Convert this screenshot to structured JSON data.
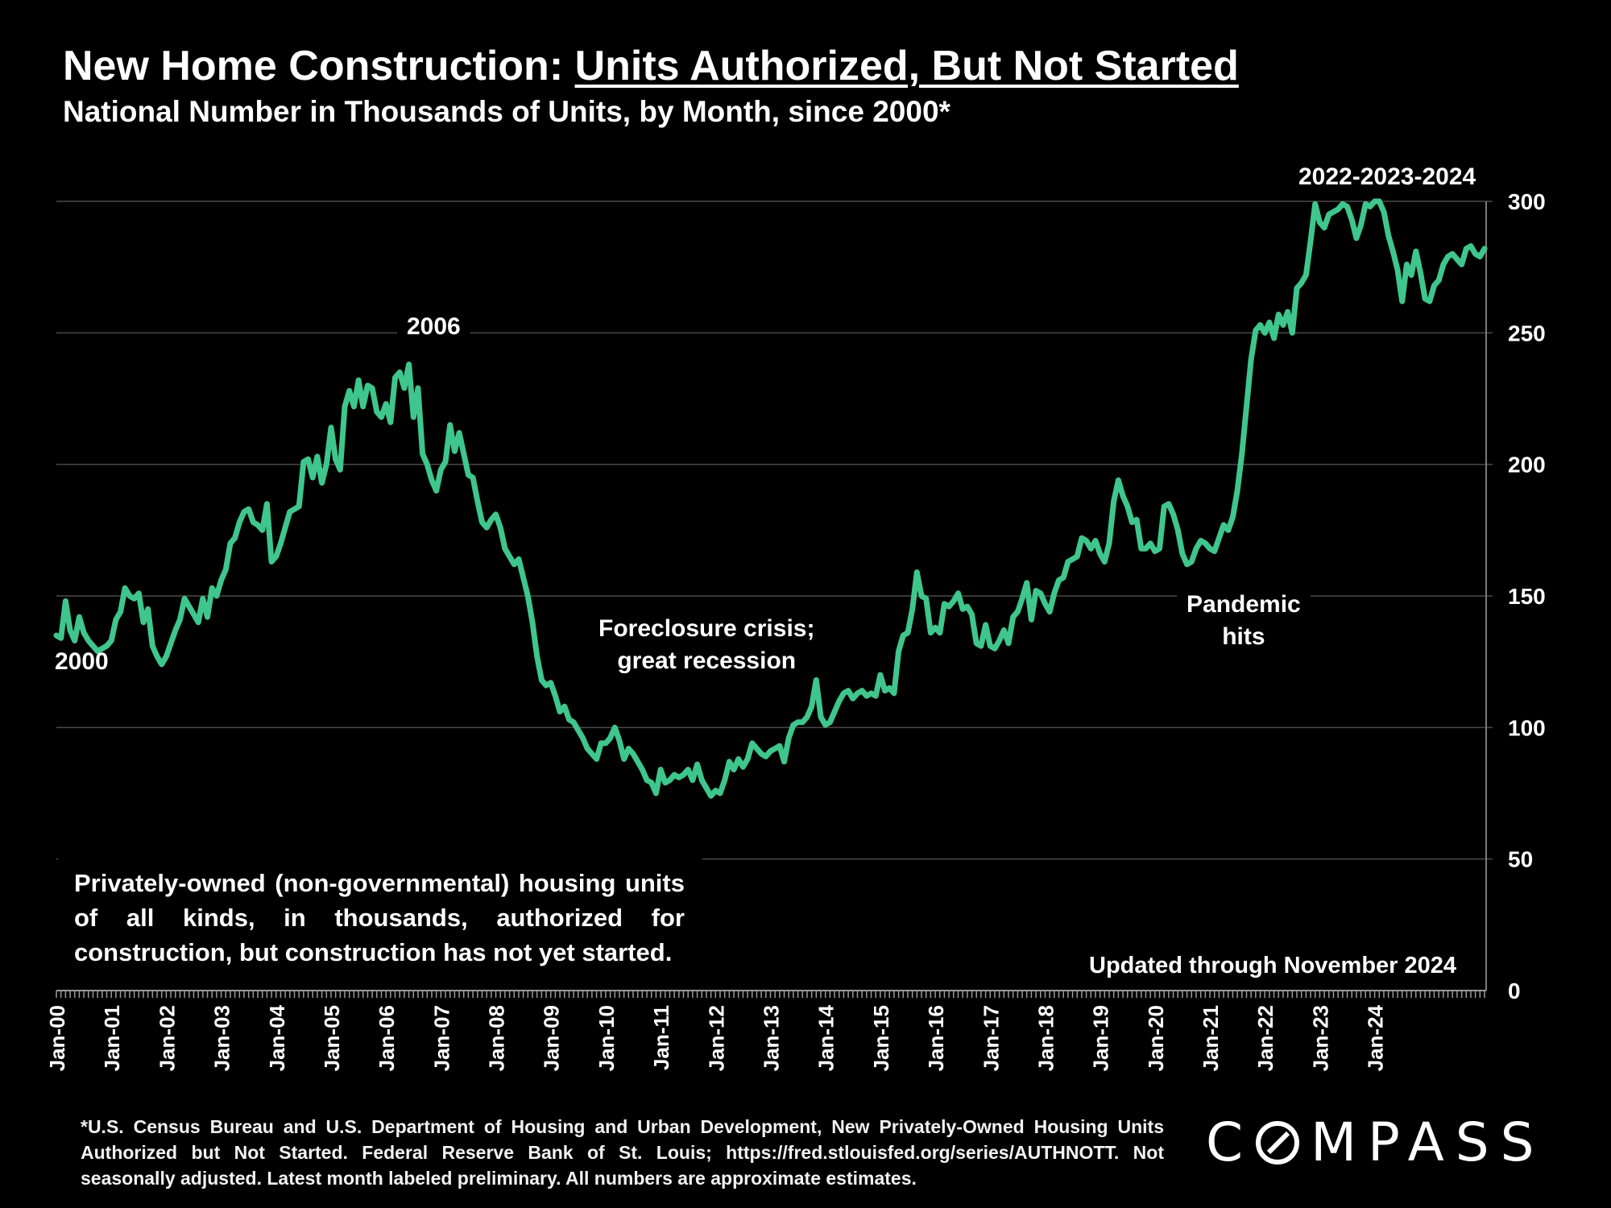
{
  "header": {
    "title_prefix": "New Home Construction: ",
    "title_highlight": "Units Authorized, But Not Started",
    "subtitle": "National Number in Thousands of Units, by Month, since 2000*"
  },
  "annotations": {
    "start": "2000",
    "peak_2006": "2006",
    "recession_line1": "Foreclosure crisis;",
    "recession_line2": "great recession",
    "pandemic_line1": "Pandemic",
    "pandemic_line2": "hits",
    "recent": "2022-2023-2024",
    "updated": "Updated through November 2024"
  },
  "description": "Privately-owned (non-governmental) housing units of all kinds, in thousands, authorized for construction, but construction has not yet started.",
  "footnote": "*U.S. Census Bureau and U.S. Department of Housing and Urban Development, New Privately-Owned Housing Units Authorized but Not Started. Federal Reserve Bank of St. Louis; https://fred.stlouisfed.org/series/AUTHNOTT. Not seasonally adjusted. Latest month labeled preliminary. All numbers are approximate estimates.",
  "logo": {
    "left": "C",
    "right": "MPASS"
  },
  "colors": {
    "background": "#000000",
    "line": "#3fc68c",
    "grid": "#4a4a4a",
    "text": "#ffffff"
  },
  "chart_data": {
    "type": "line",
    "x_tick_labels": [
      "Jan-00",
      "Jan-01",
      "Jan-02",
      "Jan-03",
      "Jan-04",
      "Jan-05",
      "Jan-06",
      "Jan-07",
      "Jan-08",
      "Jan-09",
      "Jan-10",
      "Jan-11",
      "Jan-12",
      "Jan-13",
      "Jan-14",
      "Jan-15",
      "Jan-16",
      "Jan-17",
      "Jan-18",
      "Jan-19",
      "Jan-20",
      "Jan-21",
      "Jan-22",
      "Jan-23",
      "Jan-24"
    ],
    "y_ticks": [
      0,
      50,
      100,
      150,
      200,
      250,
      300
    ],
    "ylim": [
      0,
      300
    ],
    "y_axis_side": "right",
    "grid": true,
    "x_start": "Jan-00",
    "x_end": "Nov-24",
    "monthly_keypoints": [
      [
        0,
        135
      ],
      [
        1,
        134
      ],
      [
        2,
        148
      ],
      [
        3,
        137
      ],
      [
        4,
        133
      ],
      [
        5,
        142
      ],
      [
        6,
        136
      ],
      [
        7,
        133
      ],
      [
        8,
        131
      ],
      [
        9,
        129
      ],
      [
        10,
        130
      ],
      [
        11,
        131
      ],
      [
        12,
        133
      ],
      [
        13,
        141
      ],
      [
        14,
        144
      ],
      [
        15,
        153
      ],
      [
        16,
        150
      ],
      [
        17,
        149
      ],
      [
        18,
        151
      ],
      [
        19,
        140
      ],
      [
        20,
        145
      ],
      [
        21,
        131
      ],
      [
        22,
        127
      ],
      [
        23,
        124
      ],
      [
        24,
        127
      ],
      [
        25,
        132
      ],
      [
        26,
        137
      ],
      [
        27,
        141
      ],
      [
        28,
        149
      ],
      [
        29,
        146
      ],
      [
        30,
        143
      ],
      [
        31,
        140
      ],
      [
        32,
        149
      ],
      [
        33,
        142
      ],
      [
        34,
        153
      ],
      [
        35,
        150
      ],
      [
        36,
        156
      ],
      [
        37,
        160
      ],
      [
        38,
        170
      ],
      [
        39,
        172
      ],
      [
        40,
        178
      ],
      [
        41,
        182
      ],
      [
        42,
        183
      ],
      [
        43,
        178
      ],
      [
        44,
        177
      ],
      [
        45,
        175
      ],
      [
        46,
        185
      ],
      [
        47,
        163
      ],
      [
        48,
        165
      ],
      [
        49,
        170
      ],
      [
        50,
        176
      ],
      [
        51,
        182
      ],
      [
        52,
        183
      ],
      [
        53,
        184
      ],
      [
        54,
        201
      ],
      [
        55,
        202
      ],
      [
        56,
        195
      ],
      [
        57,
        203
      ],
      [
        58,
        193
      ],
      [
        59,
        200
      ],
      [
        60,
        214
      ],
      [
        61,
        202
      ],
      [
        62,
        198
      ],
      [
        63,
        222
      ],
      [
        64,
        228
      ],
      [
        65,
        222
      ],
      [
        66,
        232
      ],
      [
        67,
        222
      ],
      [
        68,
        230
      ],
      [
        69,
        229
      ],
      [
        70,
        220
      ],
      [
        71,
        218
      ],
      [
        72,
        223
      ],
      [
        73,
        216
      ],
      [
        74,
        233
      ],
      [
        75,
        235
      ],
      [
        76,
        229
      ],
      [
        77,
        238
      ],
      [
        78,
        218
      ],
      [
        79,
        229
      ],
      [
        80,
        204
      ],
      [
        81,
        200
      ],
      [
        82,
        194
      ],
      [
        83,
        190
      ],
      [
        84,
        198
      ],
      [
        85,
        201
      ],
      [
        86,
        215
      ],
      [
        87,
        205
      ],
      [
        88,
        212
      ],
      [
        89,
        204
      ],
      [
        90,
        196
      ],
      [
        91,
        195
      ],
      [
        92,
        186
      ],
      [
        93,
        178
      ],
      [
        94,
        176
      ],
      [
        95,
        179
      ],
      [
        96,
        181
      ],
      [
        97,
        176
      ],
      [
        98,
        168
      ],
      [
        99,
        165
      ],
      [
        100,
        162
      ],
      [
        101,
        164
      ],
      [
        102,
        157
      ],
      [
        103,
        150
      ],
      [
        104,
        140
      ],
      [
        105,
        127
      ],
      [
        106,
        118
      ],
      [
        107,
        116
      ],
      [
        108,
        117
      ],
      [
        109,
        112
      ],
      [
        110,
        106
      ],
      [
        111,
        108
      ],
      [
        112,
        103
      ],
      [
        113,
        102
      ],
      [
        114,
        99
      ],
      [
        115,
        96
      ],
      [
        116,
        92
      ],
      [
        117,
        90
      ],
      [
        118,
        88
      ],
      [
        119,
        94
      ],
      [
        120,
        94
      ],
      [
        121,
        96
      ],
      [
        122,
        100
      ],
      [
        123,
        95
      ],
      [
        124,
        88
      ],
      [
        125,
        92
      ],
      [
        126,
        90
      ],
      [
        127,
        87
      ],
      [
        128,
        84
      ],
      [
        129,
        80
      ],
      [
        130,
        79
      ],
      [
        131,
        75
      ],
      [
        132,
        84
      ],
      [
        133,
        79
      ],
      [
        134,
        80
      ],
      [
        135,
        82
      ],
      [
        136,
        81
      ],
      [
        137,
        82
      ],
      [
        138,
        84
      ],
      [
        139,
        80
      ],
      [
        140,
        86
      ],
      [
        141,
        80
      ],
      [
        142,
        77
      ],
      [
        143,
        74
      ],
      [
        144,
        76
      ],
      [
        145,
        75
      ],
      [
        146,
        80
      ],
      [
        147,
        87
      ],
      [
        148,
        84
      ],
      [
        149,
        88
      ],
      [
        150,
        85
      ],
      [
        151,
        88
      ],
      [
        152,
        94
      ],
      [
        153,
        92
      ],
      [
        154,
        90
      ],
      [
        155,
        89
      ],
      [
        156,
        91
      ],
      [
        157,
        92
      ],
      [
        158,
        93
      ],
      [
        159,
        87
      ],
      [
        160,
        96
      ],
      [
        161,
        101
      ],
      [
        162,
        102
      ],
      [
        163,
        102
      ],
      [
        164,
        104
      ],
      [
        165,
        108
      ],
      [
        166,
        118
      ],
      [
        167,
        104
      ],
      [
        168,
        101
      ],
      [
        169,
        102
      ],
      [
        170,
        106
      ],
      [
        171,
        110
      ],
      [
        172,
        113
      ],
      [
        173,
        114
      ],
      [
        174,
        111
      ],
      [
        175,
        113
      ],
      [
        176,
        114
      ],
      [
        177,
        112
      ],
      [
        178,
        113
      ],
      [
        179,
        112
      ],
      [
        180,
        120
      ],
      [
        181,
        114
      ],
      [
        182,
        115
      ],
      [
        183,
        113
      ],
      [
        184,
        129
      ],
      [
        185,
        135
      ],
      [
        186,
        136
      ],
      [
        187,
        145
      ],
      [
        188,
        159
      ],
      [
        189,
        150
      ],
      [
        190,
        149
      ],
      [
        191,
        136
      ],
      [
        192,
        138
      ],
      [
        193,
        136
      ],
      [
        194,
        147
      ],
      [
        195,
        146
      ],
      [
        196,
        148
      ],
      [
        197,
        151
      ],
      [
        198,
        145
      ],
      [
        199,
        146
      ],
      [
        200,
        143
      ],
      [
        201,
        132
      ],
      [
        202,
        131
      ],
      [
        203,
        139
      ],
      [
        204,
        131
      ],
      [
        205,
        130
      ],
      [
        206,
        133
      ],
      [
        207,
        137
      ],
      [
        208,
        132
      ],
      [
        209,
        142
      ],
      [
        210,
        144
      ],
      [
        211,
        149
      ],
      [
        212,
        155
      ],
      [
        213,
        141
      ],
      [
        214,
        152
      ],
      [
        215,
        151
      ],
      [
        216,
        147
      ],
      [
        217,
        144
      ],
      [
        218,
        151
      ],
      [
        219,
        156
      ],
      [
        220,
        157
      ],
      [
        221,
        163
      ],
      [
        222,
        164
      ],
      [
        223,
        165
      ],
      [
        224,
        172
      ],
      [
        225,
        171
      ],
      [
        226,
        168
      ],
      [
        227,
        171
      ],
      [
        228,
        166
      ],
      [
        229,
        163
      ],
      [
        230,
        170
      ],
      [
        231,
        186
      ],
      [
        232,
        194
      ],
      [
        233,
        188
      ],
      [
        234,
        184
      ],
      [
        235,
        178
      ],
      [
        236,
        179
      ],
      [
        237,
        168
      ],
      [
        238,
        168
      ],
      [
        239,
        170
      ],
      [
        240,
        167
      ],
      [
        241,
        168
      ],
      [
        242,
        184
      ],
      [
        243,
        185
      ],
      [
        244,
        181
      ],
      [
        245,
        175
      ],
      [
        246,
        166
      ],
      [
        247,
        162
      ],
      [
        248,
        163
      ],
      [
        249,
        168
      ],
      [
        250,
        171
      ],
      [
        251,
        170
      ],
      [
        252,
        168
      ],
      [
        253,
        167
      ],
      [
        254,
        172
      ],
      [
        255,
        177
      ],
      [
        256,
        175
      ],
      [
        257,
        180
      ],
      [
        258,
        190
      ],
      [
        259,
        204
      ],
      [
        260,
        222
      ],
      [
        261,
        240
      ],
      [
        262,
        251
      ],
      [
        263,
        253
      ],
      [
        264,
        250
      ],
      [
        265,
        254
      ],
      [
        266,
        248
      ],
      [
        267,
        257
      ],
      [
        268,
        253
      ],
      [
        269,
        258
      ],
      [
        270,
        250
      ],
      [
        271,
        267
      ],
      [
        272,
        269
      ],
      [
        273,
        272
      ],
      [
        274,
        285
      ],
      [
        275,
        299
      ],
      [
        276,
        292
      ],
      [
        277,
        290
      ],
      [
        278,
        295
      ],
      [
        279,
        296
      ],
      [
        280,
        297
      ],
      [
        281,
        299
      ],
      [
        282,
        298
      ],
      [
        283,
        293
      ],
      [
        284,
        286
      ],
      [
        285,
        291
      ],
      [
        286,
        299
      ],
      [
        287,
        298
      ],
      [
        288,
        300
      ],
      [
        289,
        300
      ],
      [
        290,
        296
      ],
      [
        291,
        287
      ],
      [
        292,
        281
      ],
      [
        293,
        274
      ],
      [
        294,
        262
      ],
      [
        295,
        276
      ],
      [
        296,
        272
      ],
      [
        297,
        281
      ],
      [
        298,
        273
      ],
      [
        299,
        263
      ],
      [
        300,
        262
      ],
      [
        301,
        268
      ],
      [
        302,
        270
      ],
      [
        303,
        276
      ],
      [
        304,
        279
      ],
      [
        305,
        280
      ],
      [
        306,
        278
      ],
      [
        307,
        276
      ],
      [
        308,
        282
      ],
      [
        309,
        283
      ],
      [
        310,
        280
      ],
      [
        311,
        279
      ],
      [
        312,
        282
      ]
    ]
  }
}
